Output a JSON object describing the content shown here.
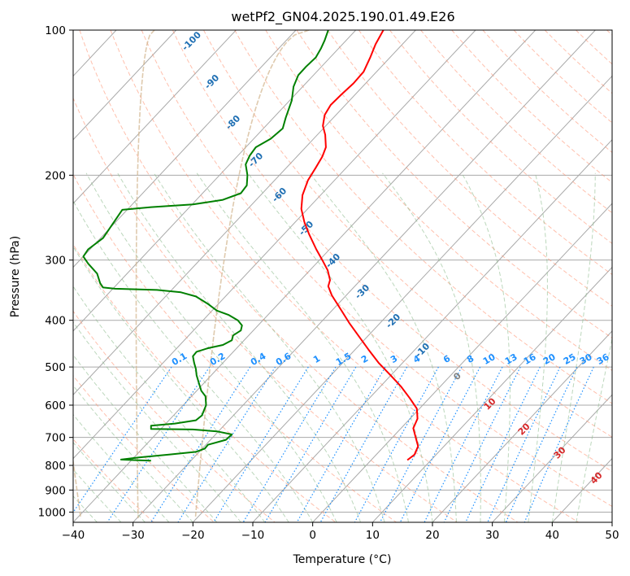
{
  "chart_data": {
    "type": "line",
    "title": "wetPf2_GN04.2025.190.01.49.E26",
    "xlabel": "Temperature (°C)",
    "ylabel": "Pressure (hPa)",
    "xlim": [
      -40,
      50
    ],
    "ylim": [
      1050,
      100
    ],
    "y_scale": "log",
    "grid": true,
    "x_ticks": [
      -40,
      -30,
      -20,
      -10,
      0,
      10,
      20,
      30,
      40,
      50
    ],
    "x_tick_labels": [
      "−40",
      "−30",
      "−20",
      "−10",
      "0",
      "10",
      "20",
      "30",
      "40",
      "50"
    ],
    "y_ticks": [
      100,
      200,
      300,
      400,
      500,
      600,
      700,
      800,
      900,
      1000
    ],
    "y_tick_labels": [
      "100",
      "200",
      "300",
      "400",
      "500",
      "600",
      "700",
      "800",
      "900",
      "1000"
    ],
    "series": [
      {
        "role": "temperature",
        "color": "#ff0000",
        "points": [
          [
            15.8,
            780
          ],
          [
            17,
            760
          ],
          [
            17.6,
            730
          ],
          [
            17.2,
            700
          ],
          [
            16.8,
            670
          ],
          [
            17.5,
            640
          ],
          [
            17.4,
            610
          ],
          [
            16.2,
            580
          ],
          [
            14.8,
            550
          ],
          [
            13,
            520
          ],
          [
            11,
            490
          ],
          [
            9.3,
            460
          ],
          [
            7.6,
            430
          ],
          [
            6.1,
            405
          ],
          [
            4.7,
            380
          ],
          [
            3.2,
            355
          ],
          [
            2.6,
            340
          ],
          [
            2.9,
            330
          ],
          [
            2.5,
            315
          ],
          [
            1.6,
            300
          ],
          [
            0.6,
            285
          ],
          [
            -0.6,
            265
          ],
          [
            -1.4,
            250
          ],
          [
            -1.9,
            235
          ],
          [
            -1.7,
            220
          ],
          [
            -0.8,
            205
          ],
          [
            0.5,
            193
          ],
          [
            1.6,
            183
          ],
          [
            2.2,
            175
          ],
          [
            2.1,
            165
          ],
          [
            1.7,
            158
          ],
          [
            2,
            150
          ],
          [
            3,
            143
          ],
          [
            4.8,
            136
          ],
          [
            6.8,
            129
          ],
          [
            8.5,
            122
          ],
          [
            9.6,
            114
          ],
          [
            10.5,
            107
          ],
          [
            11.8,
            100
          ]
        ]
      },
      {
        "role": "dewpoint",
        "color": "#008000",
        "points": [
          [
            -27,
            782
          ],
          [
            -30,
            780
          ],
          [
            -32,
            778
          ],
          [
            -29,
            770
          ],
          [
            -24,
            760
          ],
          [
            -19.5,
            750
          ],
          [
            -18,
            738
          ],
          [
            -17.5,
            725
          ],
          [
            -14.5,
            708
          ],
          [
            -13.5,
            690
          ],
          [
            -16,
            680
          ],
          [
            -20,
            674
          ],
          [
            -27,
            672
          ],
          [
            -27,
            662
          ],
          [
            -23,
            655
          ],
          [
            -19.5,
            645
          ],
          [
            -18.5,
            630
          ],
          [
            -17.8,
            600
          ],
          [
            -17.9,
            575
          ],
          [
            -18.6,
            560
          ],
          [
            -19,
            540
          ],
          [
            -19.4,
            520
          ],
          [
            -19.5,
            505
          ],
          [
            -19.8,
            490
          ],
          [
            -20,
            475
          ],
          [
            -19.4,
            465
          ],
          [
            -17.5,
            457
          ],
          [
            -15,
            450
          ],
          [
            -13.5,
            440
          ],
          [
            -13.3,
            430
          ],
          [
            -12,
            420
          ],
          [
            -11.8,
            410
          ],
          [
            -12.5,
            400
          ],
          [
            -14,
            390
          ],
          [
            -16,
            382
          ],
          [
            -17.5,
            370
          ],
          [
            -19.5,
            357
          ],
          [
            -22,
            350
          ],
          [
            -26,
            346
          ],
          [
            -33,
            344
          ],
          [
            -35,
            342
          ],
          [
            -35.5,
            335
          ],
          [
            -36,
            320
          ],
          [
            -37.5,
            305
          ],
          [
            -38.3,
            295
          ],
          [
            -37.5,
            285
          ],
          [
            -35,
            270
          ],
          [
            -31.8,
            236
          ],
          [
            -27,
            233
          ],
          [
            -20,
            230
          ],
          [
            -15,
            225
          ],
          [
            -12,
            218
          ],
          [
            -11,
            210
          ],
          [
            -10.9,
            200
          ],
          [
            -11.2,
            190
          ],
          [
            -10.5,
            182
          ],
          [
            -9.5,
            175
          ],
          [
            -7,
            168
          ],
          [
            -5,
            160
          ],
          [
            -4.5,
            152
          ],
          [
            -3.5,
            140
          ],
          [
            -3.2,
            131
          ],
          [
            -2.4,
            124
          ],
          [
            -1.1,
            119
          ],
          [
            0.5,
            114
          ],
          [
            1.4,
            109
          ],
          [
            2,
            105
          ],
          [
            2.6,
            100
          ]
        ]
      }
    ],
    "dry_adiabat_labels": [
      "-100",
      "-90",
      "-80",
      "-70",
      "-60",
      "-50",
      "-40",
      "-30",
      "-20",
      "-10"
    ],
    "mixing_ratio_labels": [
      "0.1",
      "0.2",
      "0.4",
      "0.6",
      "1",
      "1.5",
      "2",
      "3",
      "4",
      "6",
      "8",
      "10",
      "13",
      "16",
      "20",
      "25",
      "30",
      "36"
    ],
    "moist_adiabat_labels": [
      "0",
      "10",
      "20",
      "30",
      "40"
    ],
    "colors": {
      "temperature": "#ff0000",
      "dewpoint": "#008000",
      "isotherm": "#a9a9a9",
      "dry_adiabat": "#ff8c69",
      "moist_adiabat": "#8fbc8f",
      "mixing_ratio": "#1e90ff",
      "dry_adiabat_label": "#1f6fb3",
      "moist_label_zero": "#808080",
      "moist_label": "#d62728",
      "curved_line": "#d2b48c"
    }
  }
}
